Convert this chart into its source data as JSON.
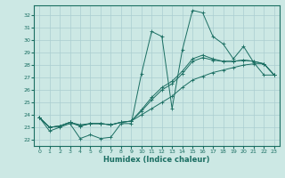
{
  "xlabel": "Humidex (Indice chaleur)",
  "bg_color": "#cce8e4",
  "grid_color": "#aaced0",
  "line_color": "#1a6e62",
  "xlim": [
    -0.5,
    23.5
  ],
  "ylim": [
    21.5,
    32.8
  ],
  "yticks": [
    22,
    23,
    24,
    25,
    26,
    27,
    28,
    29,
    30,
    31,
    32
  ],
  "xticks": [
    0,
    1,
    2,
    3,
    4,
    5,
    6,
    7,
    8,
    9,
    10,
    11,
    12,
    13,
    14,
    15,
    16,
    17,
    18,
    19,
    20,
    21,
    22,
    23
  ],
  "series": [
    [
      23.8,
      22.7,
      23.0,
      23.3,
      22.1,
      22.4,
      22.1,
      22.2,
      23.3,
      23.3,
      27.3,
      30.7,
      30.3,
      24.5,
      29.2,
      32.4,
      32.2,
      30.3,
      29.7,
      28.5,
      29.5,
      28.2,
      27.2,
      27.2
    ],
    [
      23.8,
      23.0,
      23.1,
      23.4,
      23.2,
      23.3,
      23.3,
      23.2,
      23.4,
      23.5,
      24.0,
      24.5,
      25.0,
      25.5,
      26.2,
      26.8,
      27.1,
      27.4,
      27.6,
      27.8,
      28.0,
      28.1,
      28.1,
      27.2
    ],
    [
      23.8,
      23.0,
      23.1,
      23.4,
      23.1,
      23.3,
      23.3,
      23.2,
      23.4,
      23.5,
      24.3,
      25.2,
      26.0,
      26.5,
      27.3,
      28.3,
      28.6,
      28.4,
      28.3,
      28.3,
      28.4,
      28.3,
      28.1,
      27.2
    ],
    [
      23.8,
      23.0,
      23.1,
      23.4,
      23.1,
      23.3,
      23.3,
      23.2,
      23.4,
      23.5,
      24.4,
      25.4,
      26.2,
      26.7,
      27.5,
      28.5,
      28.8,
      28.5,
      28.3,
      28.3,
      28.4,
      28.3,
      28.1,
      27.2
    ]
  ]
}
